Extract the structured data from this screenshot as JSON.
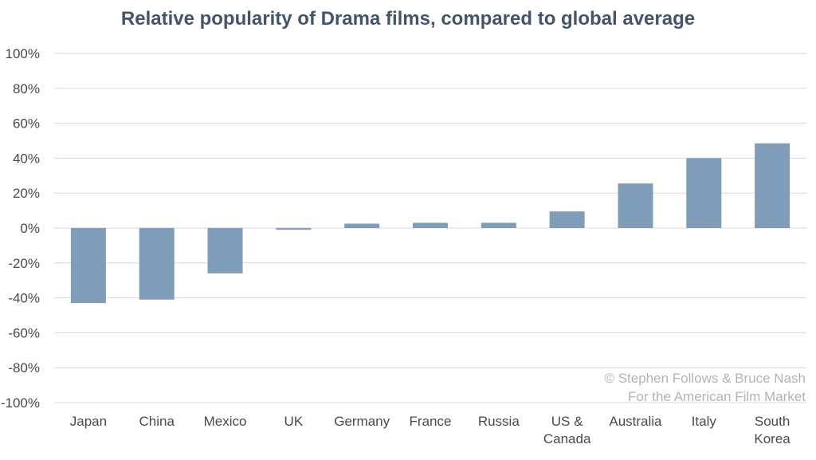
{
  "chart_data": {
    "type": "bar",
    "title": "Relative popularity of Drama films, compared to global average",
    "categories": [
      [
        "Japan"
      ],
      [
        "China"
      ],
      [
        "Mexico"
      ],
      [
        "UK"
      ],
      [
        "Germany"
      ],
      [
        "France"
      ],
      [
        "Russia"
      ],
      [
        "US &",
        "Canada"
      ],
      [
        "Australia"
      ],
      [
        "Italy"
      ],
      [
        "South",
        "Korea"
      ]
    ],
    "values": [
      -43,
      -41,
      -26,
      -1,
      2.5,
      3,
      3,
      9.5,
      25.5,
      40,
      48.5
    ],
    "ylim": [
      -100,
      100
    ],
    "yticks": [
      100,
      80,
      60,
      40,
      20,
      0,
      -20,
      -40,
      -60,
      -80,
      -100
    ],
    "ytick_labels": [
      "100%",
      "80%",
      "60%",
      "40%",
      "20%",
      "0%",
      "-20%",
      "-40%",
      "-60%",
      "-80%",
      "-100%"
    ],
    "xlabel": "",
    "ylabel": "",
    "grid": true,
    "bar_color": "#7f9db9",
    "grid_color": "#d9d9d9",
    "credit": [
      "© Stephen Follows & Bruce Nash",
      "For the American Film Market"
    ]
  }
}
